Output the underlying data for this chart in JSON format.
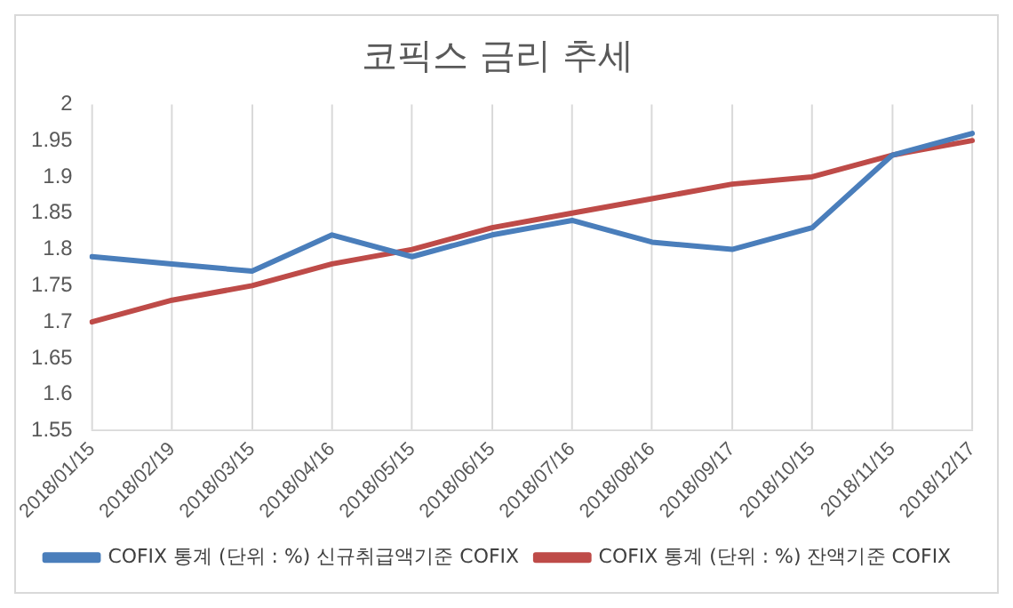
{
  "chart_data": {
    "type": "line",
    "title": "코픽스 금리 추세",
    "categories": [
      "2018/01/15",
      "2018/02/19",
      "2018/03/15",
      "2018/04/16",
      "2018/05/15",
      "2018/06/15",
      "2018/07/16",
      "2018/08/16",
      "2018/09/17",
      "2018/10/15",
      "2018/11/15",
      "2018/12/17"
    ],
    "series": [
      {
        "name": "COFIX 통계 (단위 : %) 신규취급액기준 COFIX",
        "color": "#4a7ebb",
        "values": [
          1.79,
          1.78,
          1.77,
          1.82,
          1.79,
          1.82,
          1.84,
          1.81,
          1.8,
          1.83,
          1.93,
          1.96
        ]
      },
      {
        "name": "COFIX 통계 (단위 : %) 잔액기준 COFIX",
        "color": "#be4b48",
        "values": [
          1.7,
          1.73,
          1.75,
          1.78,
          1.8,
          1.83,
          1.85,
          1.87,
          1.89,
          1.9,
          1.93,
          1.95
        ]
      }
    ],
    "ylim": [
      1.55,
      2
    ],
    "yticks": [
      1.55,
      1.6,
      1.65,
      1.7,
      1.75,
      1.8,
      1.85,
      1.9,
      1.95,
      2
    ],
    "grid": "x",
    "legend": "bottom",
    "marker": "none",
    "line_style": "solid"
  }
}
